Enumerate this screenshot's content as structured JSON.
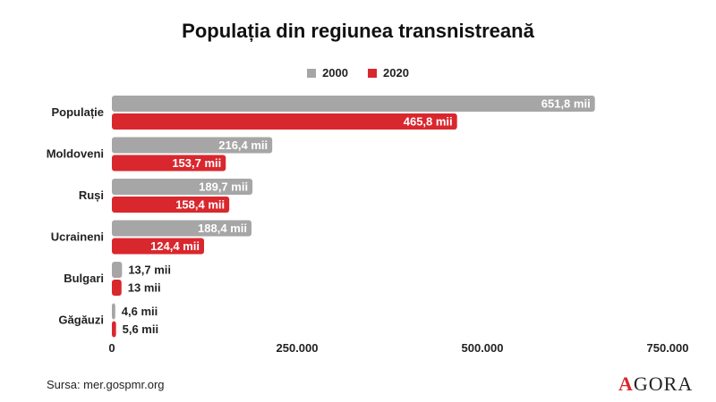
{
  "title": "Populația din regiunea transnistreană",
  "source": "Sursa: mer.gospmr.org",
  "logo": {
    "mark": "A",
    "text": "GORA"
  },
  "colors": {
    "2000": "#a6a6a6",
    "2020": "#d9272e"
  },
  "chart_data": {
    "type": "bar",
    "orientation": "horizontal",
    "title": "Populația din regiunea transnistreană",
    "categories": [
      "Populație",
      "Moldoveni",
      "Ruși",
      "Ucraineni",
      "Bulgari",
      "Găgăuzi"
    ],
    "series": [
      {
        "name": "2000",
        "values": [
          651.8,
          216.4,
          189.7,
          188.4,
          13.7,
          4.6
        ],
        "labels": [
          "651,8 mii",
          "216,4 mii",
          "189,7 mii",
          "188,4 mii",
          "13,7 mii",
          "4,6 mii"
        ]
      },
      {
        "name": "2020",
        "values": [
          465.8,
          153.7,
          158.4,
          124.4,
          13,
          5.6
        ],
        "labels": [
          "465,8 mii",
          "153,7 mii",
          "158,4 mii",
          "124,4 mii",
          "13 mii",
          "5,6 mii"
        ]
      }
    ],
    "xlim": [
      0,
      750
    ],
    "xticks": [
      0,
      250,
      500,
      750
    ],
    "xtick_labels": [
      "0",
      "250.000",
      "500.000",
      "750.000"
    ],
    "legend_position": "top-center",
    "grid": false
  }
}
